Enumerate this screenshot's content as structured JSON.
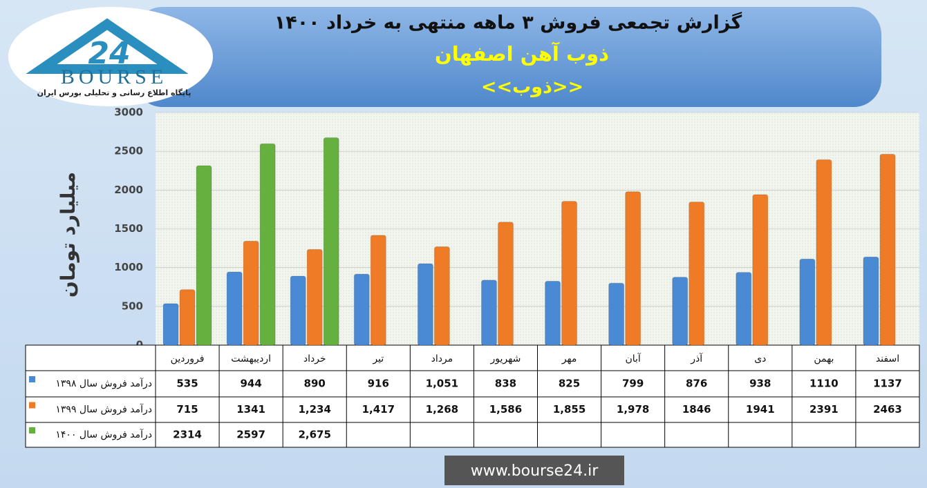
{
  "chart_data": {
    "type": "bar",
    "title": "گزارش تجمعی فروش ۳ ماهه منتهی به خرداد ۱۴۰۰",
    "subtitle": "ذوب آهن اصفهان",
    "symbol": "<<ذوب>>",
    "y_label": "میلیارد تومان",
    "categories": [
      "فروردین",
      "اردیبهشت",
      "خرداد",
      "تیر",
      "مرداد",
      "شهریور",
      "مهر",
      "آبان",
      "آذر",
      "دی",
      "بهمن",
      "اسفند"
    ],
    "series": [
      {
        "name": "درآمد فروش سال ۱۳۹۸",
        "color": "#4a8ad4",
        "values": [
          535,
          944,
          890,
          916,
          1051,
          838,
          825,
          799,
          876,
          938,
          1110,
          1137
        ],
        "value_labels": [
          "535",
          "944",
          "890",
          "916",
          "1,051",
          "838",
          "825",
          "799",
          "876",
          "938",
          "1110",
          "1137"
        ]
      },
      {
        "name": "درآمد فروش سال ۱۳۹۹",
        "color": "#f07b26",
        "values": [
          715,
          1341,
          1234,
          1417,
          1268,
          1586,
          1855,
          1978,
          1846,
          1941,
          2391,
          2463
        ],
        "value_labels": [
          "715",
          "1341",
          "1,234",
          "1,417",
          "1,268",
          "1,586",
          "1,855",
          "1,978",
          "1846",
          "1941",
          "2391",
          "2463"
        ]
      },
      {
        "name": "درآمد فروش سال ۱۴۰۰",
        "color": "#66b03f",
        "values": [
          2314,
          2597,
          2675,
          null,
          null,
          null,
          null,
          null,
          null,
          null,
          null,
          null
        ],
        "value_labels": [
          "2314",
          "2597",
          "2,675",
          null,
          null,
          null,
          null,
          null,
          null,
          null,
          null,
          null
        ]
      }
    ],
    "ylim": [
      0,
      3000
    ],
    "yticks": [
      0,
      500,
      1000,
      1500,
      2000,
      2500,
      3000
    ],
    "grid": true
  },
  "logo": {
    "number": "24",
    "text": "BOURSE",
    "tagline": "پایگاه اطلاع رسانی و تحلیلی بورس ایران"
  },
  "website": "www.bourse24.ir"
}
